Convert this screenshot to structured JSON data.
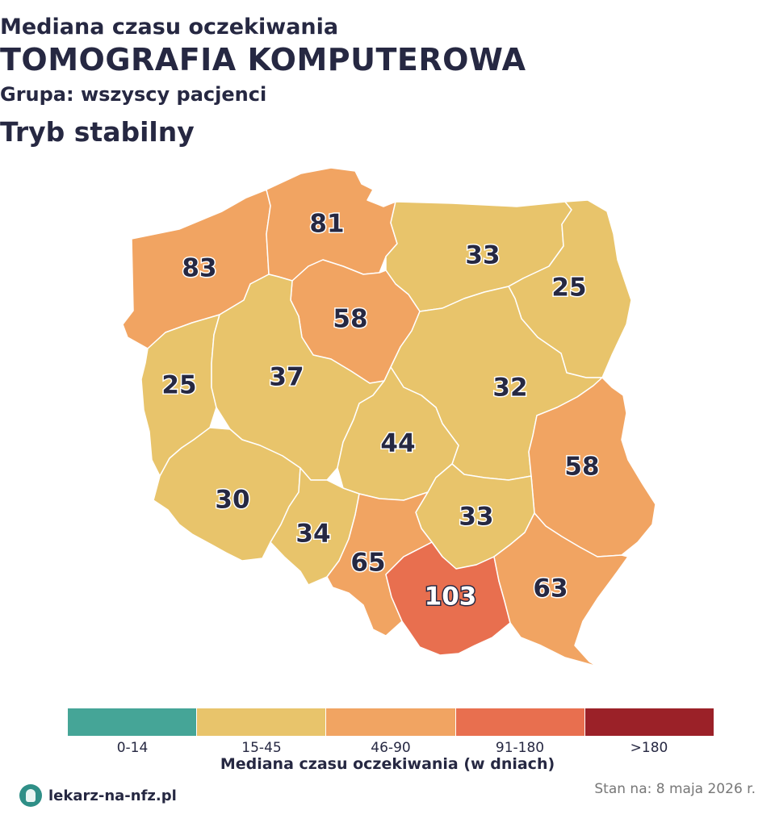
{
  "header": {
    "line1": "Mediana czasu oczekiwania",
    "line2": "TOMOGRAFIA KOMPUTEROWA",
    "line3": "Grupa: wszyscy pacjenci",
    "line4": "Tryb stabilny"
  },
  "colors": {
    "c0": "#45a597",
    "c1": "#e8c46b",
    "c2": "#f1a462",
    "c3": "#e86f4f",
    "c4": "#9b2128",
    "text": "#262842"
  },
  "regions": [
    {
      "id": "zachodniopomorskie",
      "value": "83",
      "band": 2
    },
    {
      "id": "pomorskie",
      "value": "81",
      "band": 2
    },
    {
      "id": "warminsko-mazurskie",
      "value": "33",
      "band": 1
    },
    {
      "id": "podlaskie",
      "value": "25",
      "band": 1
    },
    {
      "id": "kujawsko-pomorskie",
      "value": "58",
      "band": 2
    },
    {
      "id": "lubuskie",
      "value": "25",
      "band": 1
    },
    {
      "id": "wielkopolskie",
      "value": "37",
      "band": 1
    },
    {
      "id": "mazowieckie",
      "value": "32",
      "band": 1
    },
    {
      "id": "lodzkie",
      "value": "44",
      "band": 1
    },
    {
      "id": "lubelskie",
      "value": "58",
      "band": 2
    },
    {
      "id": "dolnoslaskie",
      "value": "30",
      "band": 1
    },
    {
      "id": "opolskie",
      "value": "34",
      "band": 1
    },
    {
      "id": "swietokrzyskie",
      "value": "33",
      "band": 1
    },
    {
      "id": "slaskie",
      "value": "65",
      "band": 2
    },
    {
      "id": "malopolskie",
      "value": "103",
      "band": 3
    },
    {
      "id": "podkarpackie",
      "value": "63",
      "band": 2
    }
  ],
  "legend": {
    "bins": [
      "0-14",
      "15-45",
      "46-90",
      "91-180",
      ">180"
    ],
    "title": "Mediana czasu oczekiwania (w dniach)"
  },
  "footer": {
    "brand": "lekarz-na-nfz.pl",
    "stan": "Stan na: 8 maja 2026 r."
  }
}
